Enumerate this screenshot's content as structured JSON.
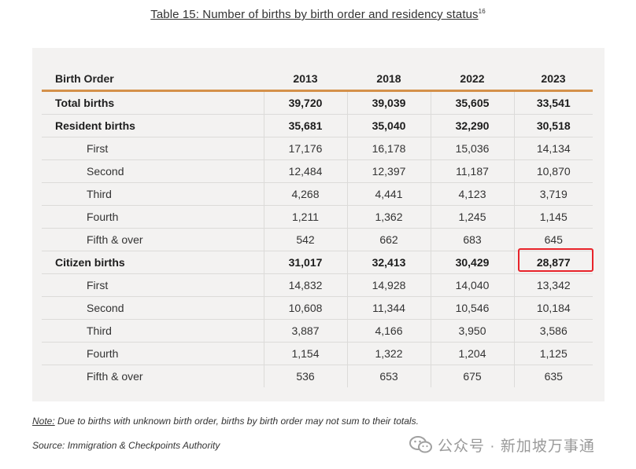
{
  "title": {
    "text": "Table 15: Number of births by birth order and residency status",
    "footnote_ref": "16"
  },
  "table": {
    "columns": [
      "Birth Order",
      "2013",
      "2018",
      "2022",
      "2023"
    ],
    "rows": [
      {
        "label": "Total births",
        "values": [
          "39,720",
          "39,039",
          "35,605",
          "33,541"
        ]
      },
      {
        "label": "Resident births",
        "values": [
          "35,681",
          "35,040",
          "32,290",
          "30,518"
        ]
      },
      {
        "label": "First",
        "values": [
          "17,176",
          "16,178",
          "15,036",
          "14,134"
        ]
      },
      {
        "label": "Second",
        "values": [
          "12,484",
          "12,397",
          "11,187",
          "10,870"
        ]
      },
      {
        "label": "Third",
        "values": [
          "4,268",
          "4,441",
          "4,123",
          "3,719"
        ]
      },
      {
        "label": "Fourth",
        "values": [
          "1,211",
          "1,362",
          "1,245",
          "1,145"
        ]
      },
      {
        "label": "Fifth & over",
        "values": [
          "542",
          "662",
          "683",
          "645"
        ]
      },
      {
        "label": "Citizen births",
        "values": [
          "31,017",
          "32,413",
          "30,429",
          "28,877"
        ]
      },
      {
        "label": "First",
        "values": [
          "14,832",
          "14,928",
          "14,040",
          "13,342"
        ]
      },
      {
        "label": "Second",
        "values": [
          "10,608",
          "11,344",
          "10,546",
          "10,184"
        ]
      },
      {
        "label": "Third",
        "values": [
          "3,887",
          "4,166",
          "3,950",
          "3,586"
        ]
      },
      {
        "label": "Fourth",
        "values": [
          "1,154",
          "1,322",
          "1,204",
          "1,125"
        ]
      },
      {
        "label": "Fifth & over",
        "values": [
          "536",
          "653",
          "675",
          "635"
        ]
      }
    ]
  },
  "note": {
    "label": "Note:",
    "text": " Due to births with unknown birth order, births by birth order may not sum to their totals."
  },
  "source": "Source: Immigration & Checkpoints Authority",
  "watermark": {
    "text": "公众号 · 新加坡万事通",
    "icon": "wechat-icon"
  },
  "colors": {
    "header_rule": "#d4914a",
    "highlight": "#e8232a",
    "panel_bg": "#f3f2f1"
  }
}
